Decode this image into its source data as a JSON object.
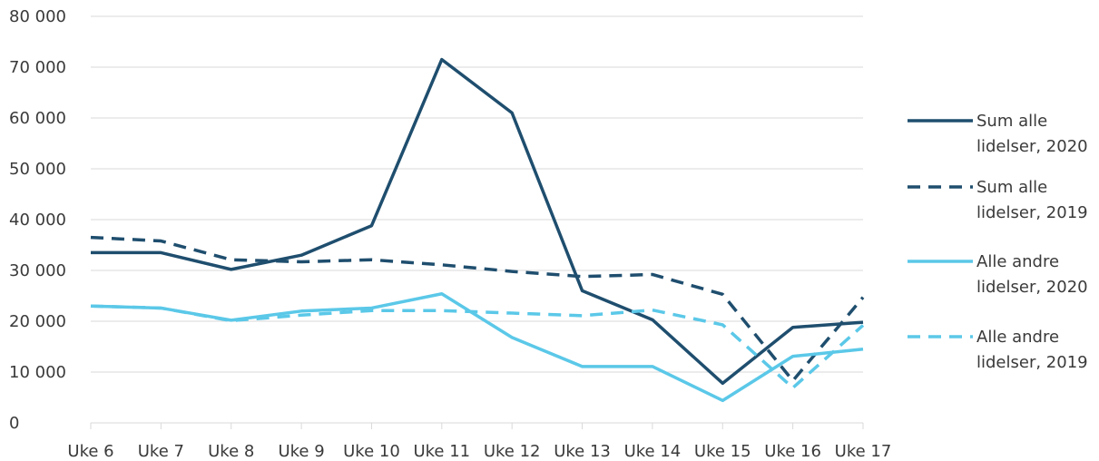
{
  "chart_data": {
    "type": "line",
    "title": "",
    "xlabel": "",
    "ylabel": "",
    "categories": [
      "Uke 6",
      "Uke 7",
      "Uke 8",
      "Uke 9",
      "Uke 10",
      "Uke 11",
      "Uke 12",
      "Uke 13",
      "Uke 14",
      "Uke 15",
      "Uke 16",
      "Uke 17"
    ],
    "ylim": [
      0,
      80000
    ],
    "yticks": [
      0,
      10000,
      20000,
      30000,
      40000,
      50000,
      60000,
      70000,
      80000
    ],
    "ytick_labels": [
      "0",
      "10 000",
      "20 000",
      "30 000",
      "40 000",
      "50 000",
      "60 000",
      "70 000",
      "80 000"
    ],
    "grid": true,
    "legend_position": "right",
    "series": [
      {
        "name": "Sum alle lidelser, 2020",
        "legend_lines": [
          "Sum alle",
          "lidelser, 2020"
        ],
        "color": "#1f4e6e",
        "dash": "solid",
        "values": [
          33500,
          33500,
          30200,
          33000,
          38800,
          71500,
          61000,
          26000,
          20300,
          7800,
          18800,
          19800
        ]
      },
      {
        "name": "Sum alle lidelser, 2019",
        "legend_lines": [
          "Sum alle",
          "lidelser, 2019"
        ],
        "color": "#1f4e6e",
        "dash": "dashed",
        "values": [
          36500,
          35800,
          32100,
          31700,
          32100,
          31100,
          29800,
          28800,
          29200,
          25300,
          8300,
          24700
        ]
      },
      {
        "name": "Alle andre lidelser, 2020",
        "legend_lines": [
          "Alle andre",
          "lidelser, 2020"
        ],
        "color": "#5bc8e8",
        "dash": "solid",
        "values": [
          23000,
          22600,
          20200,
          22000,
          22600,
          25400,
          16800,
          11100,
          11100,
          4400,
          13100,
          14500
        ]
      },
      {
        "name": "Alle andre lidelser, 2019",
        "legend_lines": [
          "Alle andre",
          "lidelser, 2019"
        ],
        "color": "#5bc8e8",
        "dash": "dashed",
        "values": [
          23000,
          22600,
          20100,
          21200,
          22100,
          22100,
          21600,
          21100,
          22200,
          19300,
          6900,
          19200
        ]
      }
    ]
  }
}
